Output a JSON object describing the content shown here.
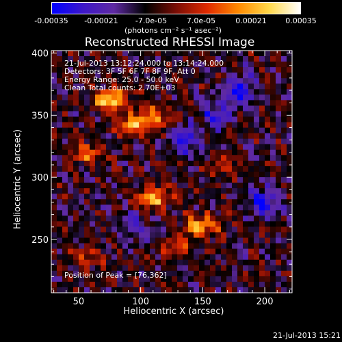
{
  "colorbar": {
    "tick_labels": [
      "-0.00035",
      "-0.00021",
      "-7.0e-05",
      "7.0e-05",
      "0.00021",
      "0.00035"
    ],
    "tick_values": [
      -0.00035,
      -0.00021,
      -7e-05,
      7e-05,
      0.00021,
      0.00035
    ],
    "units_label": "(photons cm⁻² s⁻¹ asec⁻²)",
    "colors": [
      "#0000ff",
      "#3d17c8",
      "#5f2aa3",
      "#000000",
      "#7a0d05",
      "#e02a00",
      "#ff8a00",
      "#ffd84a",
      "#ffffff"
    ]
  },
  "info": {
    "time_range": "21-Jul-2013 13:12:24.000 to 13:14:24.000",
    "detectors": "Detectors: 3F 5F 6F 7F 8F 9F, Att 0",
    "energy_range": "Energy Range: 25.0 - 50.0 keV",
    "clean": "Clean     Total counts: 2.70E+03",
    "peak": "Position of Peak = [76,362]"
  },
  "footer": {
    "timestamp": "21-Jul-2013 15:21"
  },
  "chart_data": {
    "type": "heatmap",
    "title": "Reconstructed RHESSI Image",
    "xlabel": "Heliocentric X (arcsec)",
    "ylabel": "Heliocentric Y (arcsec)",
    "xlim": [
      28,
      222
    ],
    "ylim": [
      207,
      402
    ],
    "xticks": [
      50,
      100,
      150,
      200
    ],
    "yticks": [
      250,
      300,
      350,
      400
    ],
    "zlim": [
      -0.00035,
      0.00035
    ],
    "peak_position": [
      76,
      362
    ],
    "bright_regions": [
      {
        "x": 76,
        "y": 362,
        "value": 0.00035
      },
      {
        "x": 95,
        "y": 342,
        "value": 0.00025
      },
      {
        "x": 112,
        "y": 350,
        "value": 0.0002
      },
      {
        "x": 110,
        "y": 283,
        "value": 0.00028
      },
      {
        "x": 148,
        "y": 261,
        "value": 0.00027
      },
      {
        "x": 57,
        "y": 319,
        "value": 0.0002
      },
      {
        "x": 128,
        "y": 245,
        "value": 0.00015
      },
      {
        "x": 55,
        "y": 235,
        "value": 0.00014
      },
      {
        "x": 165,
        "y": 310,
        "value": 0.00012
      }
    ],
    "dark_regions": [
      {
        "x": 180,
        "y": 370,
        "value": -0.00025
      },
      {
        "x": 135,
        "y": 330,
        "value": -0.0002
      },
      {
        "x": 200,
        "y": 280,
        "value": -0.00022
      },
      {
        "x": 160,
        "y": 350,
        "value": -0.00018
      },
      {
        "x": 95,
        "y": 260,
        "value": -0.00015
      }
    ]
  }
}
